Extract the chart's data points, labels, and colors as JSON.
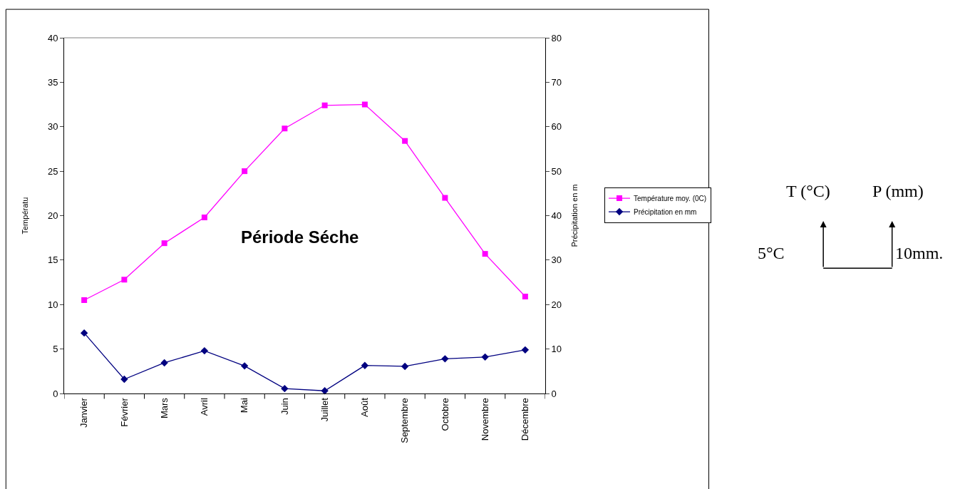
{
  "chart_data": {
    "type": "line",
    "categories": [
      "Janvier",
      "Février",
      "Mars",
      "Avril",
      "Mai",
      "Juin",
      "Juillet",
      "Août",
      "Septembre",
      "Octobre",
      "Novembre",
      "Décembre"
    ],
    "series": [
      {
        "name": "Température moy. (0C)",
        "color": "#ff00ff",
        "marker": "square",
        "values": [
          10.5,
          12.8,
          16.9,
          19.8,
          25.0,
          29.8,
          32.4,
          32.5,
          28.4,
          22.0,
          15.7,
          10.9
        ]
      },
      {
        "name": "Précipitation en mm",
        "color": "#000080",
        "marker": "diamond",
        "axis": "y2",
        "values": [
          13.6,
          3.2,
          6.9,
          9.6,
          6.2,
          1.1,
          0.6,
          6.3,
          6.1,
          7.8,
          8.2,
          9.8
        ]
      }
    ],
    "ylabel": "Températu",
    "y2label": "Précipitation en m",
    "ylim": [
      0,
      40
    ],
    "yticks": [
      0,
      5,
      10,
      15,
      20,
      25,
      30,
      35,
      40
    ],
    "y2lim": [
      0,
      80
    ],
    "y2ticks": [
      0,
      10,
      20,
      30,
      40,
      50,
      60,
      70,
      80
    ],
    "legend": "right",
    "annotations": [
      "Période Séche",
      "T (°C)",
      "P (mm)",
      "5°C",
      "10mm."
    ]
  }
}
